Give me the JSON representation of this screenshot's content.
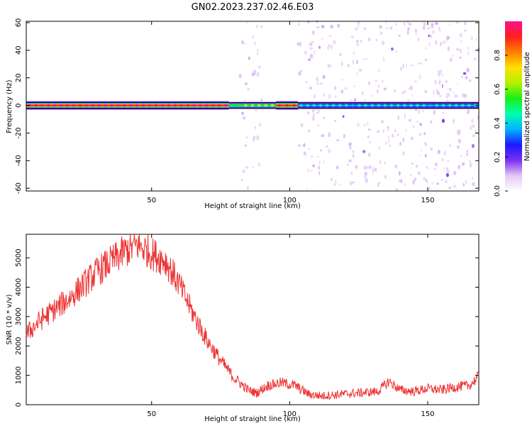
{
  "figure": {
    "title": "GN02.2023.237.02.46.E03"
  },
  "chart_data": [
    {
      "type": "heatmap",
      "xlabel": "Height of straight line (km)",
      "ylabel": "Frequency (Hz)",
      "xlim": [
        4.6,
        168.5
      ],
      "ylim": [
        -62,
        61
      ],
      "x_ticks": [
        50,
        100,
        150
      ],
      "y_ticks": [
        -60,
        -40,
        -20,
        0,
        20,
        40,
        60
      ],
      "grid": false,
      "colorbar": {
        "label": "Normalized spectral amplitude",
        "range": [
          0,
          1
        ],
        "ticks": [
          0.0,
          0.2,
          0.4,
          0.6,
          0.8
        ],
        "colormap": [
          "#ffffff",
          "#e3c6f5",
          "#7a2df0",
          "#1a1aff",
          "#00b4ff",
          "#00ffb0",
          "#18f018",
          "#b4f000",
          "#ffe000",
          "#ff8000",
          "#ff1e1e",
          "#ff1090"
        ]
      },
      "band": {
        "center_hz": 0,
        "segments": [
          {
            "from_km": 4.6,
            "to_km": 78,
            "amplitude": 0.95
          },
          {
            "from_km": 78,
            "to_km": 95,
            "amplitude": 0.55
          },
          {
            "from_km": 95,
            "to_km": 103,
            "amplitude": 0.9
          },
          {
            "from_km": 103,
            "to_km": 168.5,
            "amplitude": 0.4
          }
        ]
      },
      "noise_regions": [
        {
          "from_km": 82,
          "to_km": 90,
          "level": 0.2
        },
        {
          "from_km": 103,
          "to_km": 168.5,
          "level": 0.25
        }
      ]
    },
    {
      "type": "line",
      "xlabel": "Height of straight line (km)",
      "ylabel": "SNR (10 * v/v)",
      "xlim": [
        4.6,
        168.5
      ],
      "ylim": [
        0,
        5800
      ],
      "x_ticks": [
        50,
        100,
        150
      ],
      "y_ticks": [
        0,
        1000,
        2000,
        3000,
        4000,
        5000
      ],
      "grid": false,
      "series": [
        {
          "color": "#ee3333",
          "x": [
            4.6,
            10,
            20,
            30,
            40,
            45,
            50,
            55,
            60,
            65,
            70,
            75,
            80,
            85,
            88,
            92,
            97,
            102,
            107,
            112,
            118,
            125,
            132,
            136,
            140,
            145,
            150,
            155,
            160,
            165,
            168.5
          ],
          "y": [
            2400,
            2900,
            3600,
            4500,
            5200,
            5450,
            5150,
            4900,
            4100,
            3100,
            2200,
            1500,
            900,
            500,
            400,
            650,
            750,
            650,
            350,
            300,
            350,
            400,
            450,
            800,
            500,
            450,
            550,
            500,
            600,
            650,
            950
          ]
        }
      ]
    }
  ]
}
